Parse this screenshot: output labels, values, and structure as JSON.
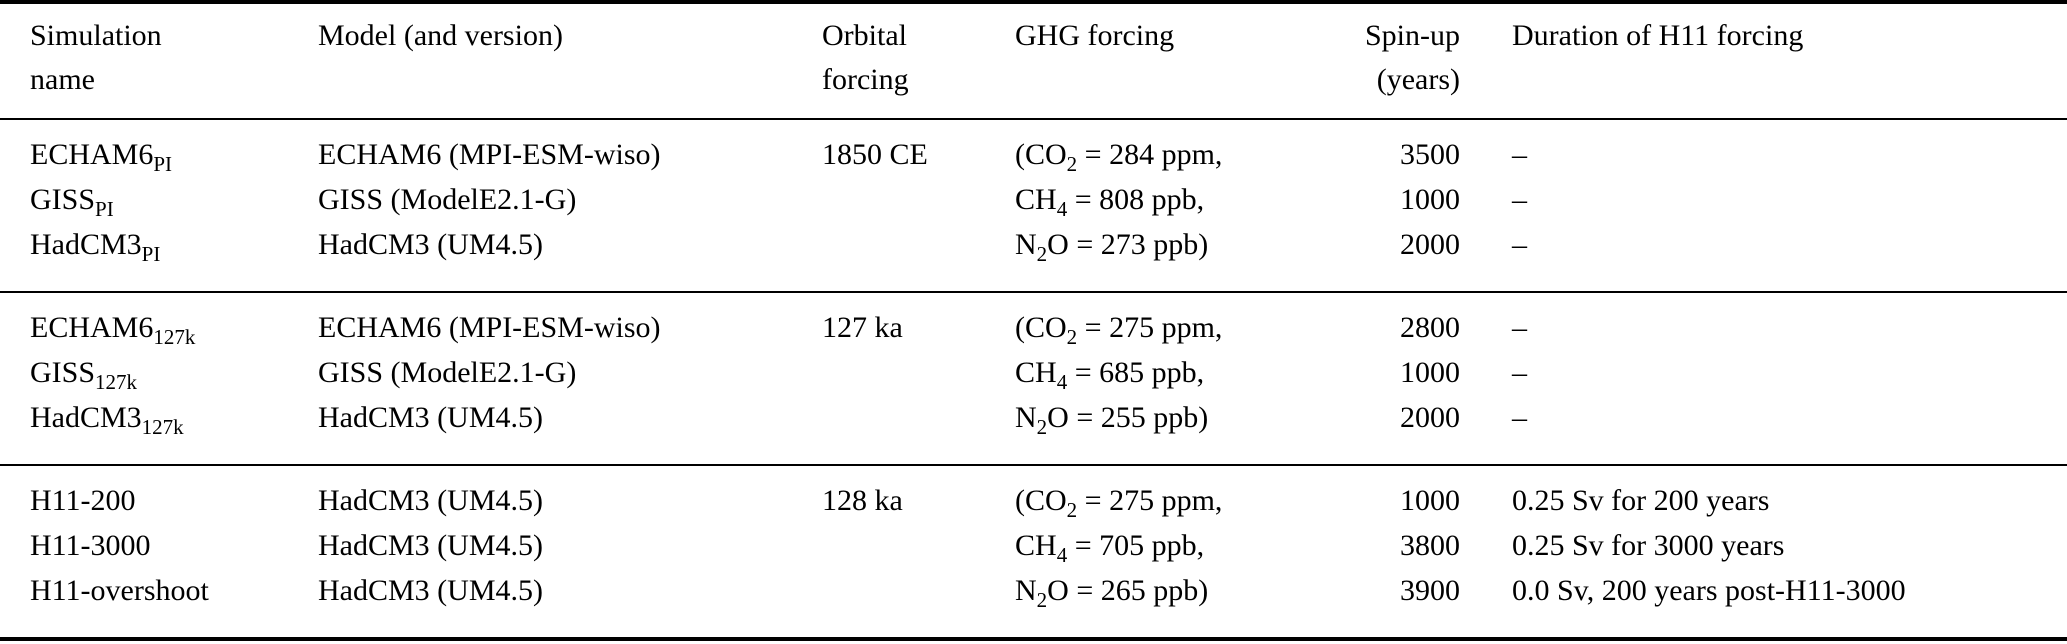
{
  "header": {
    "simulation": [
      "Simulation",
      "name"
    ],
    "model": "Model (and version)",
    "orbital": [
      "Orbital",
      "forcing"
    ],
    "ghg": "GHG forcing",
    "spinup": [
      "Spin-up",
      "(years)"
    ],
    "duration": "Duration of H11 forcing"
  },
  "groups": [
    {
      "rows": [
        {
          "sim_base": "ECHAM6",
          "sim_sub": "PI",
          "model": "ECHAM6 (MPI-ESM-wiso)",
          "orbital": "1850 CE",
          "ghg_pre": "(CO",
          "ghg_sub": "2",
          "ghg_post": " = 284 ppm,",
          "spinup": "3500",
          "duration": "–"
        },
        {
          "sim_base": "GISS",
          "sim_sub": "PI",
          "model": "GISS (ModelE2.1-G)",
          "orbital": "",
          "ghg_pre": "CH",
          "ghg_sub": "4",
          "ghg_post": " = 808 ppb,",
          "spinup": "1000",
          "duration": "–"
        },
        {
          "sim_base": "HadCM3",
          "sim_sub": "PI",
          "model": "HadCM3 (UM4.5)",
          "orbital": "",
          "ghg_pre": "N",
          "ghg_sub": "2",
          "ghg_post": "O = 273 ppb)",
          "spinup": "2000",
          "duration": "–"
        }
      ]
    },
    {
      "rows": [
        {
          "sim_base": "ECHAM6",
          "sim_sub": "127k",
          "model": "ECHAM6 (MPI-ESM-wiso)",
          "orbital": "127 ka",
          "ghg_pre": "(CO",
          "ghg_sub": "2",
          "ghg_post": " = 275 ppm,",
          "spinup": "2800",
          "duration": "–"
        },
        {
          "sim_base": "GISS",
          "sim_sub": "127k",
          "model": "GISS (ModelE2.1-G)",
          "orbital": "",
          "ghg_pre": "CH",
          "ghg_sub": "4",
          "ghg_post": " = 685 ppb,",
          "spinup": "1000",
          "duration": "–"
        },
        {
          "sim_base": "HadCM3",
          "sim_sub": "127k",
          "model": "HadCM3 (UM4.5)",
          "orbital": "",
          "ghg_pre": "N",
          "ghg_sub": "2",
          "ghg_post": "O = 255 ppb)",
          "spinup": "2000",
          "duration": "–"
        }
      ]
    },
    {
      "rows": [
        {
          "sim_base": "H11-200",
          "sim_sub": "",
          "model": "HadCM3 (UM4.5)",
          "orbital": "128 ka",
          "ghg_pre": "(CO",
          "ghg_sub": "2",
          "ghg_post": " = 275 ppm,",
          "spinup": "1000",
          "duration": "0.25 Sv for 200 years"
        },
        {
          "sim_base": "H11-3000",
          "sim_sub": "",
          "model": "HadCM3 (UM4.5)",
          "orbital": "",
          "ghg_pre": "CH",
          "ghg_sub": "4",
          "ghg_post": " = 705 ppb,",
          "spinup": "3800",
          "duration": "0.25 Sv for 3000 years"
        },
        {
          "sim_base": "H11-overshoot",
          "sim_sub": "",
          "model": "HadCM3 (UM4.5)",
          "orbital": "",
          "ghg_pre": "N",
          "ghg_sub": "2",
          "ghg_post": "O = 265 ppb)",
          "spinup": "3900",
          "duration": "0.0 Sv, 200 years post-H11-3000"
        }
      ]
    }
  ]
}
